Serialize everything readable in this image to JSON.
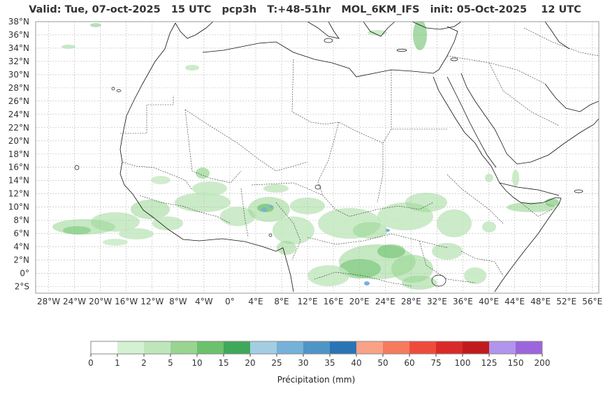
{
  "title": "Valid: Tue, 07-oct-2025   15 UTC   pcp3h   T:+48-51hr   MOL_6KM_IFS   init: 05-Oct-2025    12 UTC",
  "lat_labels": [
    "38°N",
    "36°N",
    "34°N",
    "32°N",
    "30°N",
    "28°N",
    "26°N",
    "24°N",
    "22°N",
    "20°N",
    "18°N",
    "16°N",
    "14°N",
    "12°N",
    "10°N",
    "8°N",
    "6°N",
    "4°N",
    "2°N",
    "0°",
    "2°S"
  ],
  "lat_values": [
    38,
    36,
    34,
    32,
    30,
    28,
    26,
    24,
    22,
    20,
    18,
    16,
    14,
    12,
    10,
    8,
    6,
    4,
    2,
    0,
    -2
  ],
  "lon_labels": [
    "28°W",
    "24°W",
    "20°W",
    "16°W",
    "12°W",
    "8°W",
    "4°W",
    "0°",
    "4°E",
    "8°E",
    "12°E",
    "16°E",
    "20°E",
    "24°E",
    "28°E",
    "32°E",
    "36°E",
    "40°E",
    "44°E",
    "48°E",
    "52°E",
    "56°E"
  ],
  "lon_values": [
    -28,
    -24,
    -20,
    -16,
    -12,
    -8,
    -4,
    0,
    4,
    8,
    12,
    16,
    20,
    24,
    28,
    32,
    36,
    40,
    44,
    48,
    52,
    56
  ],
  "extent": {
    "lon": [
      -30,
      57
    ],
    "lat": [
      -3,
      38
    ]
  },
  "colorbar": {
    "label": "Précipitation (mm)",
    "ticks": [
      "0",
      "1",
      "2",
      "5",
      "10",
      "15",
      "20",
      "25",
      "30",
      "35",
      "40",
      "50",
      "60",
      "75",
      "100",
      "125",
      "150",
      "200"
    ],
    "colors": [
      "#ffffff",
      "#d4f2d2",
      "#bfe6bb",
      "#97d591",
      "#6cc16c",
      "#3fa85a",
      "#a3cde3",
      "#75b1d9",
      "#4e95c6",
      "#2a74b6",
      "#f9a285",
      "#f67a5c",
      "#ef4b3b",
      "#d92a27",
      "#c01a1d",
      "#b194ec",
      "#9c64dd"
    ]
  },
  "colors": {
    "coast": "#111111",
    "border": "#333333",
    "grid": "#b8b8b8",
    "frame": "#999999"
  }
}
